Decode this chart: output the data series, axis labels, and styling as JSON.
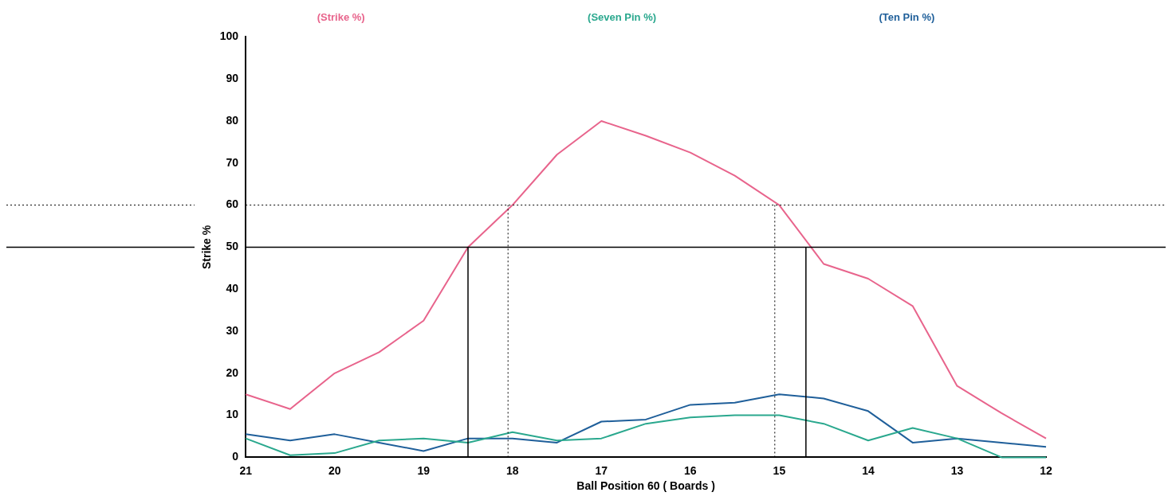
{
  "chart_data": {
    "type": "line",
    "xlabel": "Ball Position 60 ( Boards )",
    "ylabel": "Strike %",
    "x": [
      21,
      20.5,
      20,
      19.5,
      19,
      18.5,
      18,
      17.5,
      17,
      16.5,
      16,
      15.5,
      15,
      14.5,
      14,
      13.5,
      13,
      12.5,
      12
    ],
    "xlim": [
      21,
      12
    ],
    "xticks": [
      21,
      20,
      19,
      18,
      17,
      16,
      15,
      14,
      13,
      12
    ],
    "ylim": [
      0,
      100
    ],
    "yticks": [
      0,
      10,
      20,
      30,
      40,
      50,
      60,
      70,
      80,
      90,
      100
    ],
    "grid": false,
    "legend": "top",
    "marker": "none",
    "line_style": "solid",
    "series": [
      {
        "name": "(Strike %)",
        "color": "#e8648c",
        "values": [
          15,
          11.5,
          20,
          25,
          32.5,
          50,
          60,
          72,
          80,
          76.5,
          72.5,
          67,
          60,
          46,
          42.5,
          36,
          17,
          10.5,
          4.5
        ]
      },
      {
        "name": "(Seven Pin %)",
        "color": "#2aa88e",
        "values": [
          4.5,
          0.5,
          1,
          4,
          4.5,
          3.5,
          6,
          4,
          4.5,
          8,
          9.5,
          10,
          10,
          8,
          4,
          7,
          4.5,
          0,
          0
        ]
      },
      {
        "name": "(Ten Pin %)",
        "color": "#1f5f9a",
        "values": [
          5.5,
          4,
          5.5,
          3.5,
          1.5,
          4.5,
          4.5,
          3.5,
          8.5,
          9,
          12.5,
          13,
          15,
          14,
          11,
          3.5,
          4.5,
          3.5,
          2.5
        ]
      }
    ],
    "ref_lines": [
      {
        "axis": "y",
        "value": 60,
        "line_style": "dotted",
        "color": "#000000"
      },
      {
        "axis": "y",
        "value": 50,
        "line_style": "solid",
        "color": "#000000"
      },
      {
        "axis": "x",
        "value": 18.5,
        "line_style": "solid",
        "color": "#000000"
      },
      {
        "axis": "x",
        "value": 18.05,
        "line_style": "dotted",
        "color": "#000000"
      },
      {
        "axis": "x",
        "value": 15.05,
        "line_style": "dotted",
        "color": "#000000"
      },
      {
        "axis": "x",
        "value": 14.7,
        "line_style": "solid",
        "color": "#000000"
      }
    ]
  }
}
